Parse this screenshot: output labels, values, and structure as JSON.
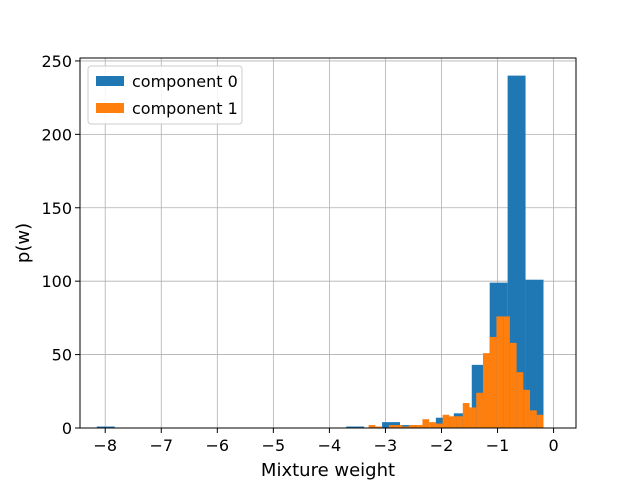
{
  "chart_data": {
    "type": "bar",
    "title": "",
    "xlabel": "Mixture weight",
    "ylabel": "p(w)",
    "xlim": [
      -8.45,
      0.4
    ],
    "ylim": [
      0,
      252
    ],
    "xticks": [
      -8,
      -7,
      -6,
      -5,
      -4,
      -3,
      -2,
      -1,
      0
    ],
    "xtick_labels": [
      "−8",
      "−7",
      "−6",
      "−5",
      "−4",
      "−3",
      "−2",
      "−1",
      "0"
    ],
    "yticks": [
      0,
      50,
      100,
      150,
      200,
      250
    ],
    "ytick_labels": [
      "0",
      "50",
      "100",
      "150",
      "200",
      "250"
    ],
    "grid": true,
    "legend_position": "top-left",
    "series": [
      {
        "name": "component 0",
        "color": "#1f77b4",
        "bins": [
          {
            "x0": -8.15,
            "x1": -7.83,
            "y": 1
          },
          {
            "x0": -3.7,
            "x1": -3.38,
            "y": 1
          },
          {
            "x0": -3.06,
            "x1": -2.74,
            "y": 4
          },
          {
            "x0": -2.74,
            "x1": -2.42,
            "y": 2
          },
          {
            "x0": -2.1,
            "x1": -1.78,
            "y": 7
          },
          {
            "x0": -1.78,
            "x1": -1.46,
            "y": 10
          },
          {
            "x0": -1.46,
            "x1": -1.14,
            "y": 43
          },
          {
            "x0": -1.14,
            "x1": -0.82,
            "y": 99
          },
          {
            "x0": -0.82,
            "x1": -0.5,
            "y": 240
          },
          {
            "x0": -0.5,
            "x1": -0.18,
            "y": 101
          }
        ]
      },
      {
        "name": "component 1",
        "color": "#ff7f0e",
        "bins": [
          {
            "x0": -3.3,
            "x1": -3.18,
            "y": 2
          },
          {
            "x0": -3.18,
            "x1": -3.06,
            "y": 1
          },
          {
            "x0": -2.94,
            "x1": -2.82,
            "y": 2
          },
          {
            "x0": -2.82,
            "x1": -2.7,
            "y": 2
          },
          {
            "x0": -2.7,
            "x1": -2.58,
            "y": 1
          },
          {
            "x0": -2.58,
            "x1": -2.46,
            "y": 2
          },
          {
            "x0": -2.46,
            "x1": -2.34,
            "y": 2
          },
          {
            "x0": -2.34,
            "x1": -2.22,
            "y": 6
          },
          {
            "x0": -2.22,
            "x1": -2.1,
            "y": 4
          },
          {
            "x0": -2.1,
            "x1": -1.98,
            "y": 3
          },
          {
            "x0": -1.98,
            "x1": -1.86,
            "y": 9
          },
          {
            "x0": -1.86,
            "x1": -1.74,
            "y": 8
          },
          {
            "x0": -1.74,
            "x1": -1.62,
            "y": 8
          },
          {
            "x0": -1.62,
            "x1": -1.5,
            "y": 17
          },
          {
            "x0": -1.5,
            "x1": -1.38,
            "y": 14
          },
          {
            "x0": -1.38,
            "x1": -1.26,
            "y": 24
          },
          {
            "x0": -1.26,
            "x1": -1.14,
            "y": 51
          },
          {
            "x0": -1.14,
            "x1": -1.02,
            "y": 62
          },
          {
            "x0": -1.02,
            "x1": -0.9,
            "y": 76
          },
          {
            "x0": -0.9,
            "x1": -0.78,
            "y": 76
          },
          {
            "x0": -0.78,
            "x1": -0.66,
            "y": 58
          },
          {
            "x0": -0.66,
            "x1": -0.54,
            "y": 38
          },
          {
            "x0": -0.54,
            "x1": -0.42,
            "y": 26
          },
          {
            "x0": -0.42,
            "x1": -0.3,
            "y": 12
          },
          {
            "x0": -0.3,
            "x1": -0.18,
            "y": 9
          }
        ]
      }
    ]
  }
}
